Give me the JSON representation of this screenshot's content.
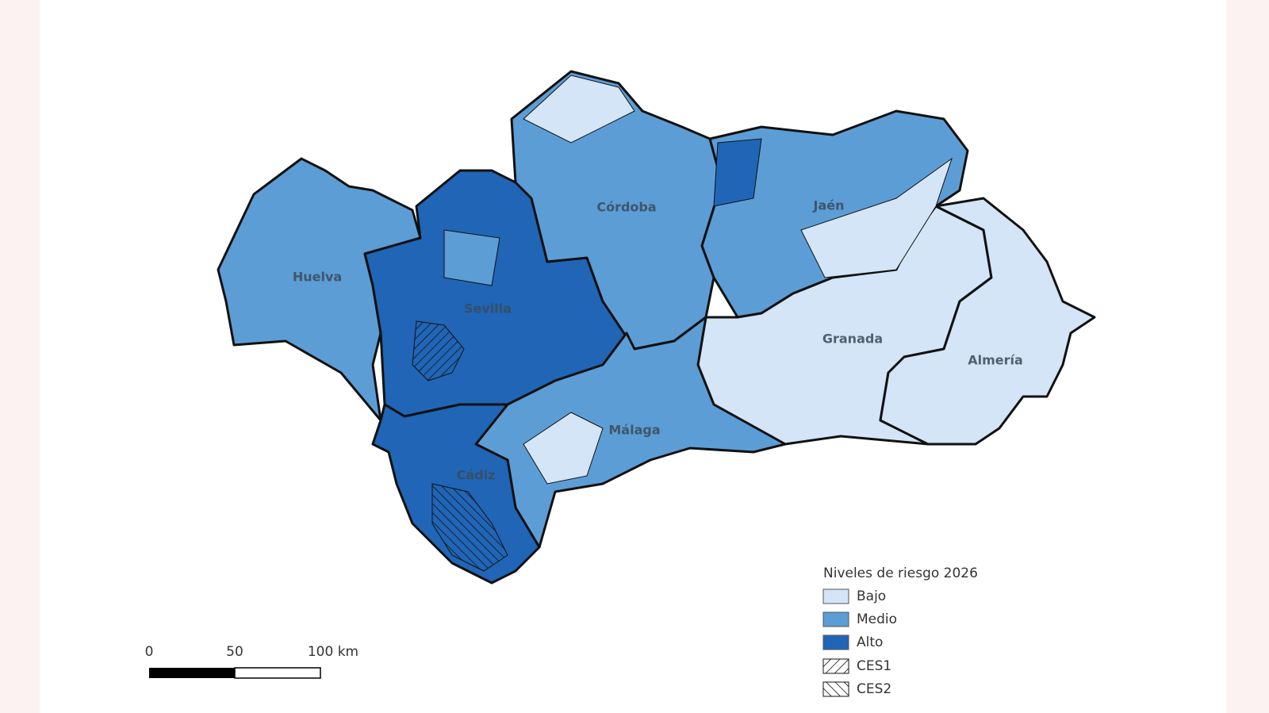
{
  "map": {
    "provinces": [
      {
        "name": "Huelva"
      },
      {
        "name": "Sevilla"
      },
      {
        "name": "Córdoba"
      },
      {
        "name": "Jaén"
      },
      {
        "name": "Granada"
      },
      {
        "name": "Almería"
      },
      {
        "name": "Málaga"
      },
      {
        "name": "Cádiz"
      }
    ]
  },
  "legend": {
    "title": "Niveles de riesgo 2026",
    "items": [
      "Bajo",
      "Medio",
      "Alto",
      "CES1",
      "CES2"
    ]
  },
  "scale_bar": {
    "labels": [
      "0",
      "50",
      "100 km"
    ]
  }
}
